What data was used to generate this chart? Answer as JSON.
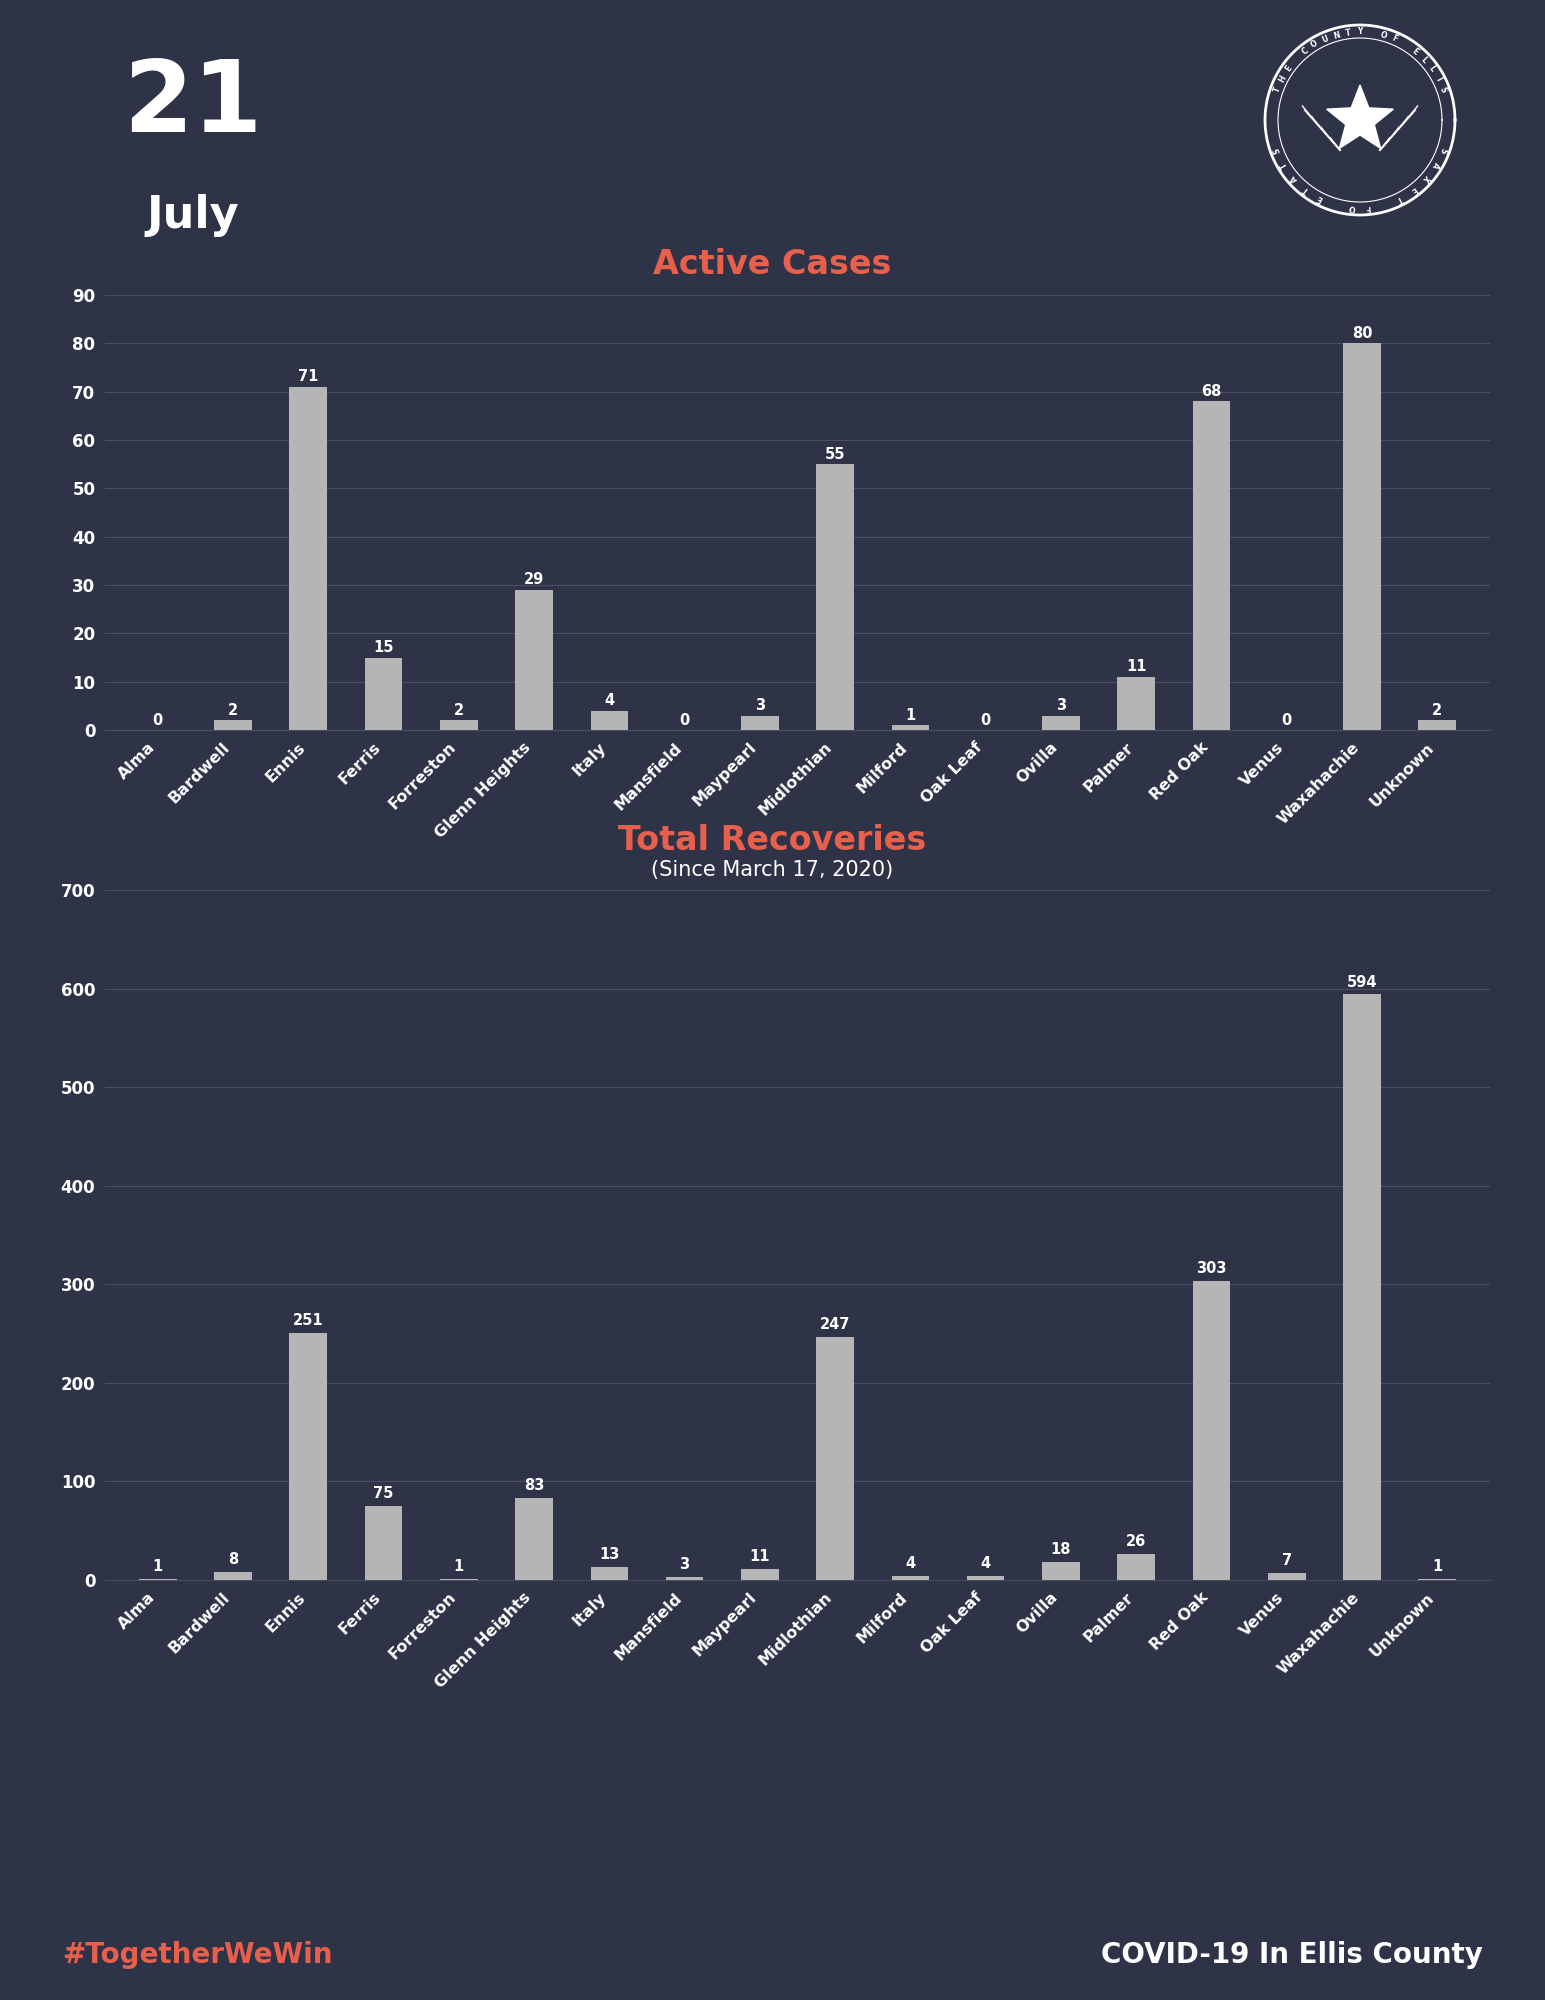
{
  "bg_color": "#2e3347",
  "bar_color": "#b5b5b5",
  "title_color": "#e8604c",
  "text_color": "#ffffff",
  "axis_text_color": "#ffffff",
  "grid_color": "#4a4f62",
  "red_box_color": "#e8604c",
  "date_day": "21",
  "date_month": "July",
  "active_title": "Active Cases",
  "recovery_title": "Total Recoveries",
  "recovery_subtitle": "(Since March 17, 2020)",
  "categories": [
    "Alma",
    "Bardwell",
    "Ennis",
    "Ferris",
    "Forreston",
    "Glenn Heights",
    "Italy",
    "Mansfield",
    "Maypearl",
    "Midlothian",
    "Milford",
    "Oak Leaf",
    "Ovilla",
    "Palmer",
    "Red Oak",
    "Venus",
    "Waxahachie",
    "Unknown"
  ],
  "active_values": [
    0,
    2,
    71,
    15,
    2,
    29,
    4,
    0,
    3,
    55,
    1,
    0,
    3,
    11,
    68,
    0,
    80,
    2
  ],
  "active_ylim": [
    0,
    90
  ],
  "active_yticks": [
    0,
    10,
    20,
    30,
    40,
    50,
    60,
    70,
    80,
    90
  ],
  "recovery_values": [
    1,
    8,
    251,
    75,
    1,
    83,
    13,
    3,
    11,
    247,
    4,
    4,
    18,
    26,
    303,
    7,
    594,
    1
  ],
  "recovery_ylim": [
    0,
    700
  ],
  "recovery_yticks": [
    0,
    100,
    200,
    300,
    400,
    500,
    600,
    700
  ],
  "footer_left": "#TogetherWeWin",
  "footer_right": "COVID-19 In Ellis County",
  "footer_left_color": "#e8604c",
  "footer_right_color": "#ffffff"
}
